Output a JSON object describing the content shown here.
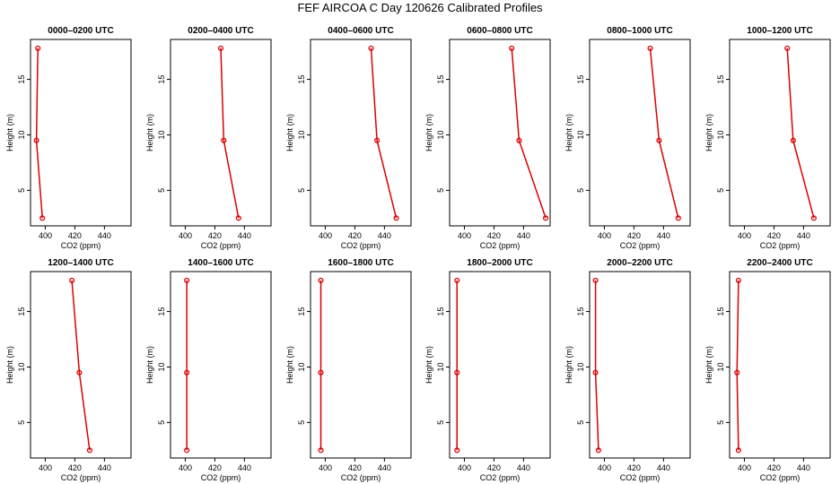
{
  "title": "FEF AIRCOA C  Day 120626  Calibrated Profiles",
  "chart_data": {
    "type": "line",
    "xlabel": "CO2 (ppm)",
    "ylabel": "Height (m)",
    "xlim": [
      390,
      458
    ],
    "ylim": [
      1.8,
      18.6
    ],
    "xticks": [
      400,
      420,
      440
    ],
    "yticks": [
      5,
      10,
      15
    ],
    "line_color": "#dd0000",
    "panels": [
      {
        "title": "0000–0200 UTC",
        "x": [
          398,
          394,
          395
        ],
        "y": [
          2.5,
          9.5,
          17.8
        ]
      },
      {
        "title": "0200–0400 UTC",
        "x": [
          436,
          426,
          424
        ],
        "y": [
          2.5,
          9.5,
          17.8
        ]
      },
      {
        "title": "0400–0600 UTC",
        "x": [
          448,
          435,
          431
        ],
        "y": [
          2.5,
          9.5,
          17.8
        ]
      },
      {
        "title": "0600–0800 UTC",
        "x": [
          455,
          437,
          432
        ],
        "y": [
          2.5,
          9.5,
          17.8
        ]
      },
      {
        "title": "0800–1000 UTC",
        "x": [
          450,
          437,
          431
        ],
        "y": [
          2.5,
          9.5,
          17.8
        ]
      },
      {
        "title": "1000–1200 UTC",
        "x": [
          447,
          433,
          429
        ],
        "y": [
          2.5,
          9.5,
          17.8
        ]
      },
      {
        "title": "1200–1400 UTC",
        "x": [
          430,
          423,
          418
        ],
        "y": [
          2.5,
          9.5,
          17.8
        ]
      },
      {
        "title": "1400–1600 UTC",
        "x": [
          401,
          401,
          401
        ],
        "y": [
          2.5,
          9.5,
          17.8
        ]
      },
      {
        "title": "1600–1800 UTC",
        "x": [
          397,
          397,
          397
        ],
        "y": [
          2.5,
          9.5,
          17.8
        ]
      },
      {
        "title": "1800–2000 UTC",
        "x": [
          395,
          395,
          395
        ],
        "y": [
          2.5,
          9.5,
          17.8
        ]
      },
      {
        "title": "2000–2200 UTC",
        "x": [
          396,
          394,
          394
        ],
        "y": [
          2.5,
          9.5,
          17.8
        ]
      },
      {
        "title": "2200–2400 UTC",
        "x": [
          396,
          395,
          396
        ],
        "y": [
          2.5,
          9.5,
          17.8
        ]
      }
    ]
  }
}
